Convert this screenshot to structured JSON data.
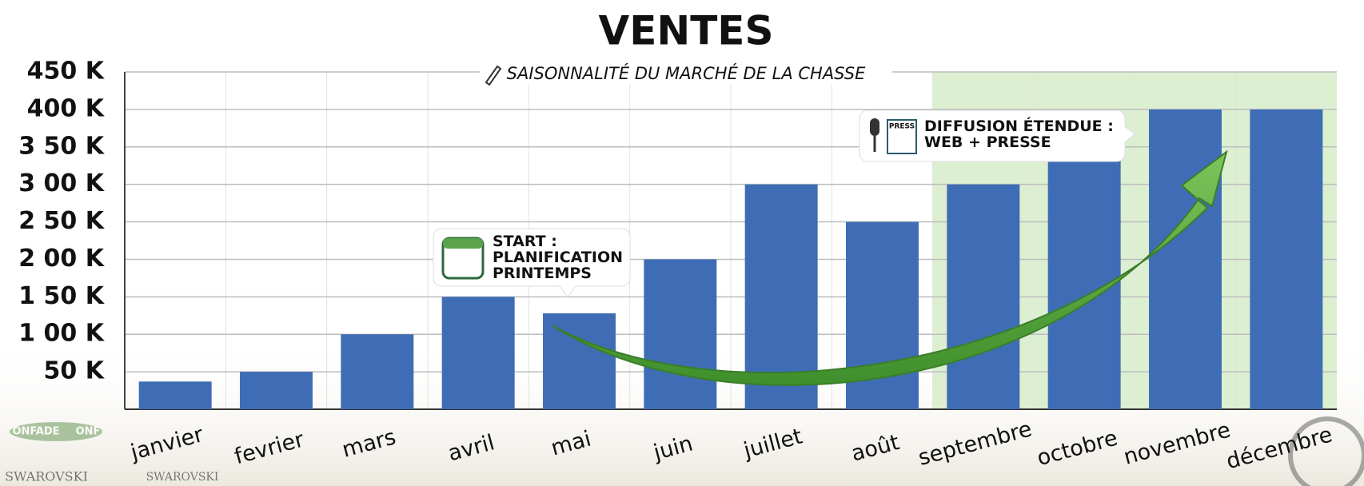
{
  "chart_data": {
    "type": "bar",
    "title": "VENTES",
    "subtitle": "SAISONNALITÉ DU MARCHÉ DE LA CHASSE",
    "categories": [
      "janvier",
      "fevrier",
      "mars",
      "avril",
      "mai",
      "juin",
      "juillet",
      "août",
      "septembre",
      "octobre",
      "novembre",
      "décembre"
    ],
    "values": [
      37000,
      50000,
      100000,
      150000,
      128000,
      200000,
      300000,
      250000,
      300000,
      350000,
      400000,
      400000
    ],
    "color": "#3f6db5",
    "ylim": [
      0,
      450000
    ],
    "yticks": [
      {
        "value": 50000,
        "label": "50 K"
      },
      {
        "value": 100000,
        "label": "1 00 K"
      },
      {
        "value": 150000,
        "label": "1 50 K"
      },
      {
        "value": 200000,
        "label": "2 00 K"
      },
      {
        "value": 250000,
        "label": "2 50 K"
      },
      {
        "value": 300000,
        "label": "3 00 K"
      },
      {
        "value": 350000,
        "label": "3 50 K"
      },
      {
        "value": 400000,
        "label": "400 K"
      },
      {
        "value": 450000,
        "label": "450 K"
      }
    ],
    "grid": true,
    "highlight": {
      "from": "septembre",
      "to": "décembre",
      "color": "#dcefd0"
    },
    "annotations": [
      {
        "lines": [
          "START :",
          "PLANIFICATION",
          "PRINTEMPS"
        ]
      },
      {
        "lines": [
          "DIFFUSION ÉTENDUE :",
          "WEB + PRESSE"
        ],
        "icon_text": "PRESS"
      }
    ],
    "watermarks": [
      "ONFADE",
      "ONF",
      "SWAROVSKI",
      "SWAROVSKI"
    ]
  }
}
